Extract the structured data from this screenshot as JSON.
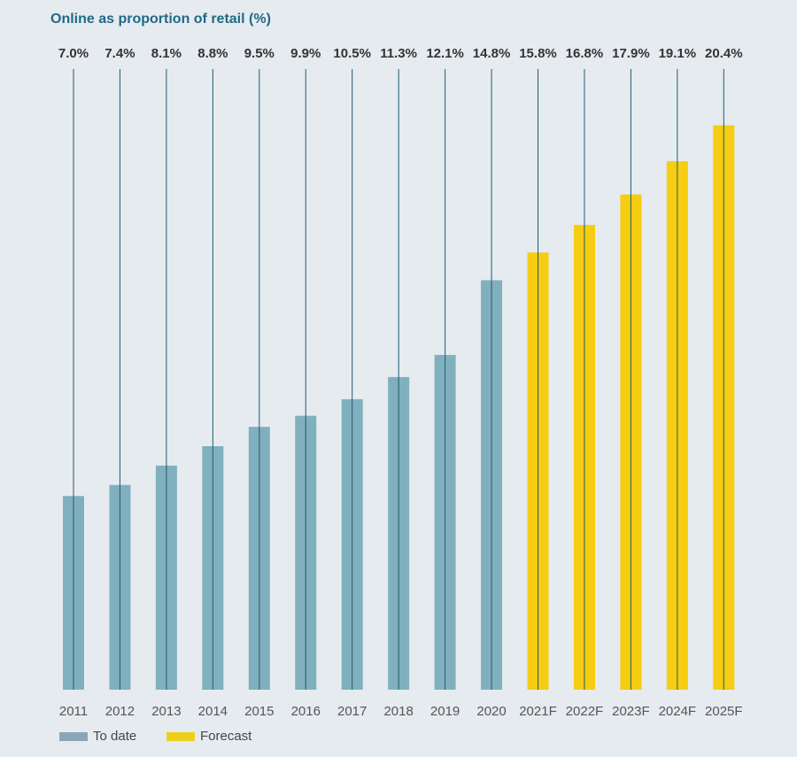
{
  "chart_data": {
    "type": "bar",
    "title": "Online as proportion of retail (%)",
    "xlabel": "",
    "ylabel": "",
    "categories": [
      "2011",
      "2012",
      "2013",
      "2014",
      "2015",
      "2016",
      "2017",
      "2018",
      "2019",
      "2020",
      "2021F",
      "2022F",
      "2023F",
      "2024F",
      "2025F"
    ],
    "values": [
      7.0,
      7.4,
      8.1,
      8.8,
      9.5,
      9.9,
      10.5,
      11.3,
      12.1,
      14.8,
      15.8,
      16.8,
      17.9,
      19.1,
      20.4
    ],
    "value_labels": [
      "7.0%",
      "7.4%",
      "8.1%",
      "8.8%",
      "9.5%",
      "9.9%",
      "10.5%",
      "11.3%",
      "12.1%",
      "14.8%",
      "15.8%",
      "16.8%",
      "17.9%",
      "19.1%",
      "20.4%"
    ],
    "series_type": [
      "to_date",
      "to_date",
      "to_date",
      "to_date",
      "to_date",
      "to_date",
      "to_date",
      "to_date",
      "to_date",
      "to_date",
      "forecast",
      "forecast",
      "forecast",
      "forecast",
      "forecast"
    ],
    "ylim": [
      0,
      22.5
    ],
    "grid": false,
    "legend": {
      "placement": "bottom-left",
      "items": [
        {
          "key": "to_date",
          "label": "To date",
          "color": "#8ba6b9"
        },
        {
          "key": "forecast",
          "label": "Forecast",
          "color": "#ecd11c"
        }
      ]
    },
    "colors": {
      "to_date": "#80b0bd",
      "forecast": "#f6cd10",
      "leader_line": "#1d5c72"
    }
  }
}
